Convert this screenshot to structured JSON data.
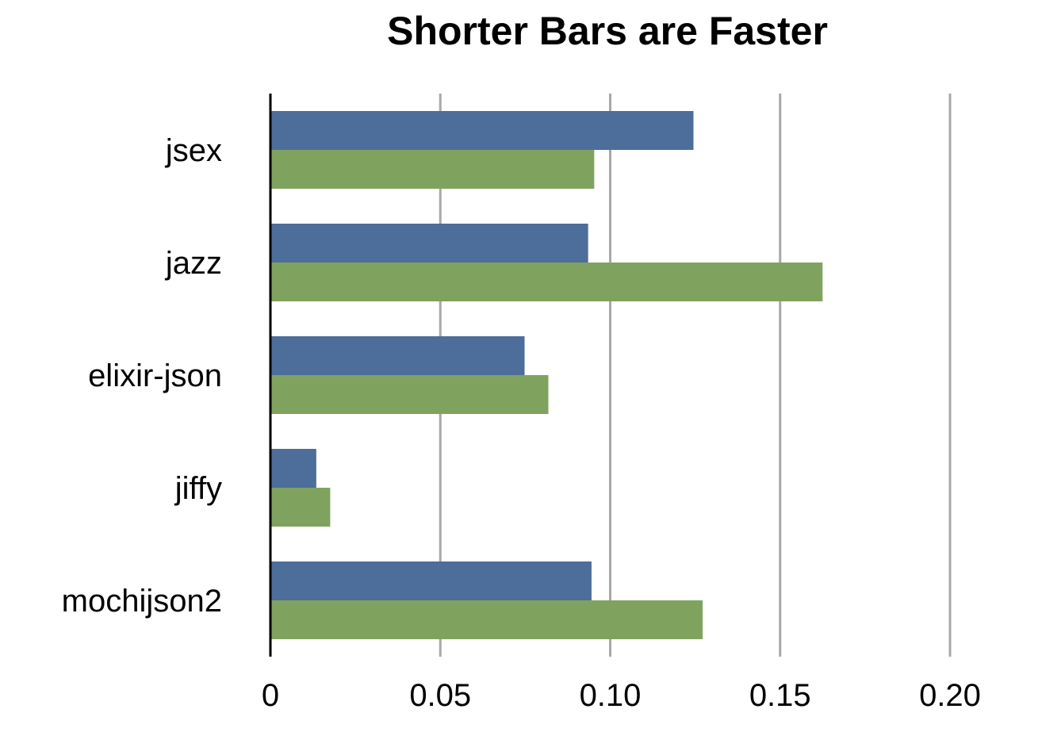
{
  "chart_data": {
    "type": "bar",
    "orientation": "horizontal",
    "title": "Shorter Bars are Faster",
    "xlabel": "",
    "ylabel": "",
    "categories": [
      "jsex",
      "jazz",
      "elixir-json",
      "jiffy",
      "mochijson2"
    ],
    "series": [
      {
        "color": "#4d6d9a",
        "values": [
          0.1245,
          0.0935,
          0.0748,
          0.0135,
          0.0945
        ]
      },
      {
        "color": "#7fa35f",
        "values": [
          0.0953,
          0.1625,
          0.0818,
          0.0176,
          0.1272
        ]
      }
    ],
    "xlim": [
      0,
      0.2
    ],
    "ticks": [
      {
        "value": 0,
        "label": "0"
      },
      {
        "value": 0.05,
        "label": "0.05"
      },
      {
        "value": 0.1,
        "label": "0.10"
      },
      {
        "value": 0.15,
        "label": "0.15"
      },
      {
        "value": 0.2,
        "label": "0.20"
      }
    ],
    "grid": true,
    "legend": "none"
  }
}
